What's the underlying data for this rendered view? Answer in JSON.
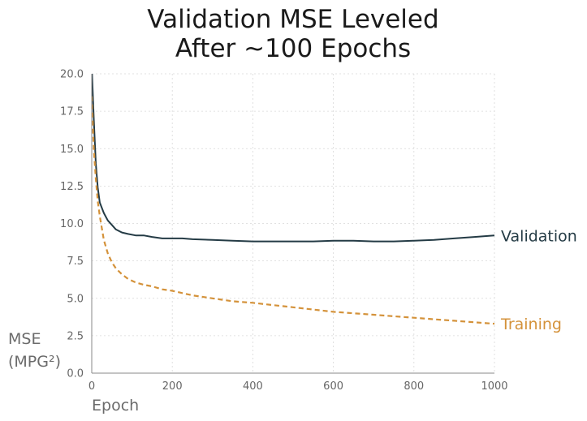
{
  "chart_data": {
    "type": "line",
    "title_lines": [
      "Validation MSE Leveled",
      "After ~100 Epochs"
    ],
    "xlabel": "Epoch",
    "ylabel_lines": [
      "MSE",
      "(MPG²)"
    ],
    "xlim": [
      0,
      1000
    ],
    "ylim": [
      0,
      20
    ],
    "xticks": [
      "0",
      "200",
      "400",
      "600",
      "800",
      "1000"
    ],
    "yticks": [
      "0.0",
      "2.5",
      "5.0",
      "7.5",
      "10.0",
      "12.5",
      "15.0",
      "17.5",
      "20.0"
    ],
    "grid": true,
    "series": [
      {
        "name": "Validation",
        "color": "#243b45",
        "style": "solid",
        "x": [
          0,
          5,
          10,
          15,
          20,
          30,
          40,
          50,
          60,
          75,
          90,
          110,
          130,
          150,
          175,
          200,
          225,
          250,
          300,
          350,
          400,
          450,
          500,
          550,
          600,
          650,
          700,
          750,
          800,
          850,
          900,
          950,
          1000
        ],
        "y": [
          20.5,
          17.0,
          14.0,
          12.4,
          11.4,
          10.7,
          10.2,
          9.9,
          9.6,
          9.4,
          9.3,
          9.2,
          9.2,
          9.1,
          9.0,
          9.0,
          9.0,
          8.95,
          8.9,
          8.85,
          8.8,
          8.8,
          8.8,
          8.8,
          8.85,
          8.85,
          8.8,
          8.8,
          8.85,
          8.9,
          9.0,
          9.1,
          9.2
        ]
      },
      {
        "name": "Training",
        "color": "#d4923a",
        "style": "dashed",
        "x": [
          0,
          5,
          10,
          15,
          20,
          30,
          40,
          50,
          60,
          75,
          90,
          110,
          130,
          150,
          175,
          200,
          225,
          250,
          300,
          350,
          400,
          450,
          500,
          550,
          600,
          650,
          700,
          750,
          800,
          850,
          900,
          950,
          1000
        ],
        "y": [
          18.5,
          15.0,
          13.0,
          11.5,
          10.5,
          8.9,
          8.0,
          7.4,
          7.0,
          6.6,
          6.3,
          6.05,
          5.9,
          5.8,
          5.6,
          5.5,
          5.35,
          5.2,
          5.0,
          4.8,
          4.7,
          4.55,
          4.4,
          4.25,
          4.1,
          4.0,
          3.9,
          3.8,
          3.7,
          3.6,
          3.5,
          3.4,
          3.3
        ]
      }
    ]
  }
}
